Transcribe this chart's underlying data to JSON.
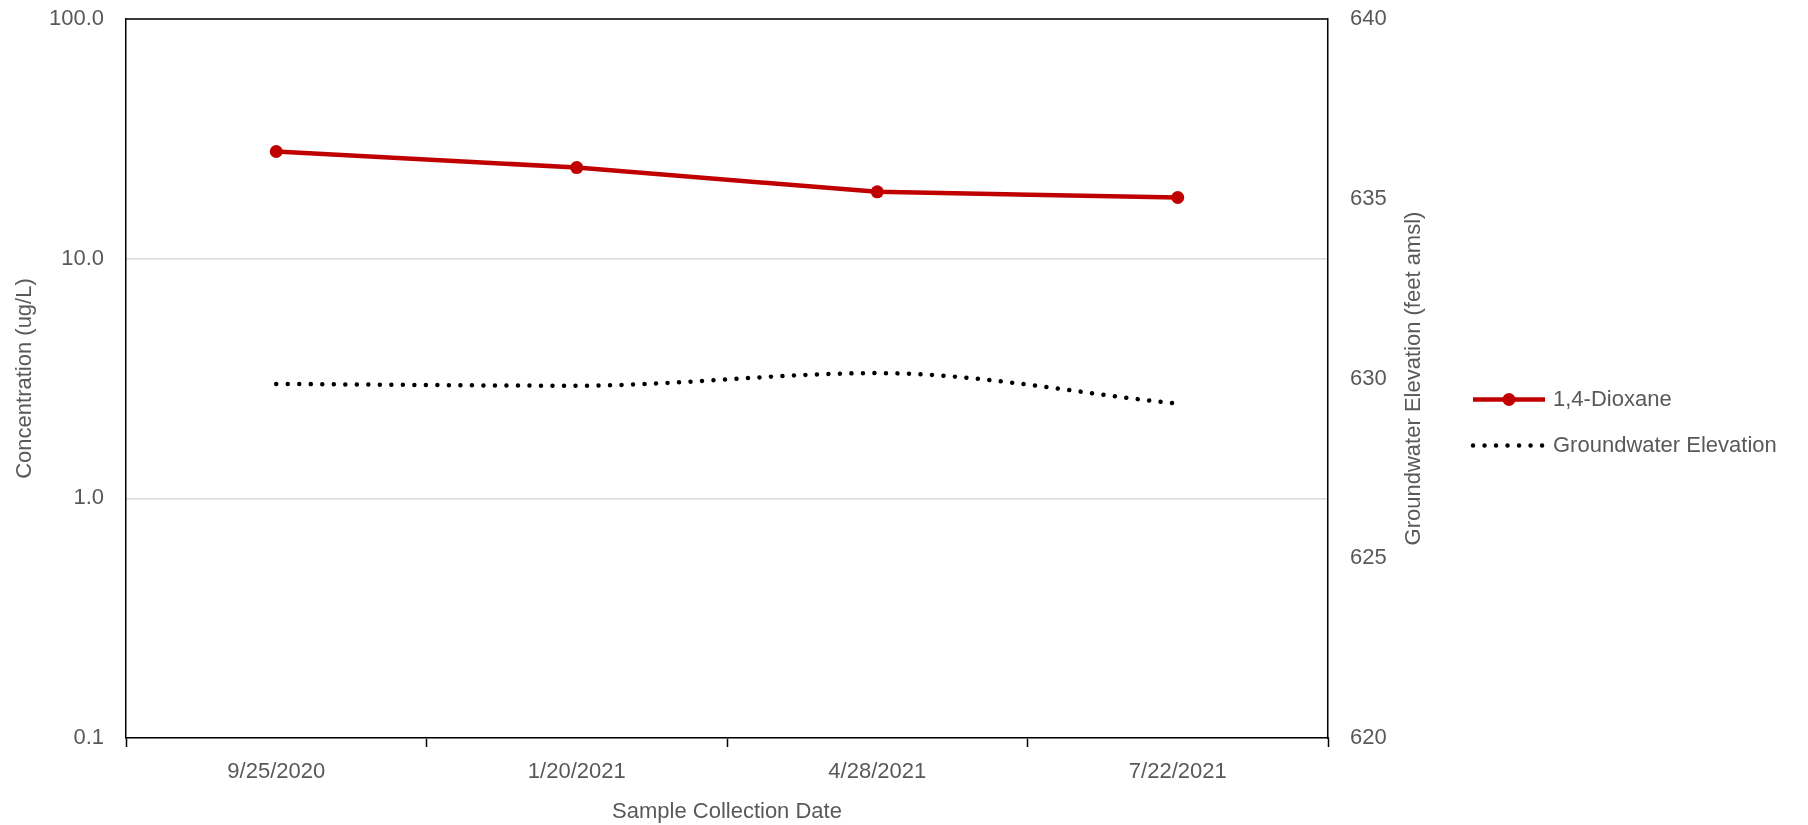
{
  "chart_data": {
    "type": "line",
    "categories": [
      "9/25/2020",
      "1/20/2021",
      "4/28/2021",
      "7/22/2021"
    ],
    "xlabel": "Sample Collection Date",
    "ylabel": "Concentration (ug/L)",
    "y2label": "Groundwater Elevation (feet amsl)",
    "log": "y",
    "ylim": [
      0.1,
      100
    ],
    "yticks": [
      0.1,
      {
        "value": 1,
        "label": "1.0"
      },
      {
        "value": 10,
        "label": "10.0"
      },
      {
        "value": 100,
        "label": "100.0"
      }
    ],
    "y2lim": [
      620,
      640
    ],
    "y2ticks": [
      620,
      625,
      630,
      635,
      640
    ],
    "grid": "y",
    "legend": "right",
    "series": [
      {
        "name": "1,4-Dioxane",
        "color": "#c00000",
        "values": [
          28,
          24,
          19,
          18
        ],
        "marker": "circle",
        "line_style": "solid"
      },
      {
        "name": "Groundwater Elevation",
        "color": "#000000",
        "values": [
          629.85,
          629.8,
          630.15,
          629.3
        ],
        "axis": "y2",
        "marker": "none",
        "line_style": "dotted"
      }
    ]
  }
}
